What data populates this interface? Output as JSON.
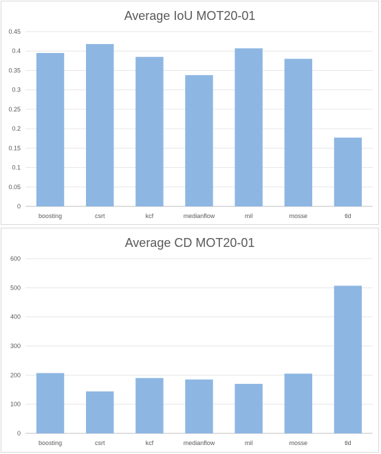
{
  "chart_data": [
    {
      "type": "bar",
      "title": "Average IoU MOT20-01",
      "categories": [
        "boosting",
        "csrt",
        "kcf",
        "medianflow",
        "mil",
        "mosse",
        "tld"
      ],
      "values": [
        0.395,
        0.418,
        0.385,
        0.338,
        0.407,
        0.38,
        0.177
      ],
      "ylim": [
        0,
        0.45
      ],
      "yticks": [
        "0",
        "0.05",
        "0.1",
        "0.15",
        "0.2",
        "0.25",
        "0.3",
        "0.35",
        "0.4",
        "0.45"
      ],
      "grid": true,
      "bar_color": "#8db6e2"
    },
    {
      "type": "bar",
      "title": "Average CD MOT20-01",
      "categories": [
        "boosting",
        "csrt",
        "kcf",
        "medianflow",
        "mil",
        "mosse",
        "tld"
      ],
      "values": [
        207,
        144,
        190,
        185,
        170,
        205,
        507
      ],
      "ylim": [
        0,
        600
      ],
      "yticks": [
        "0",
        "100",
        "200",
        "300",
        "400",
        "500",
        "600"
      ],
      "grid": true,
      "bar_color": "#8db6e2"
    }
  ]
}
